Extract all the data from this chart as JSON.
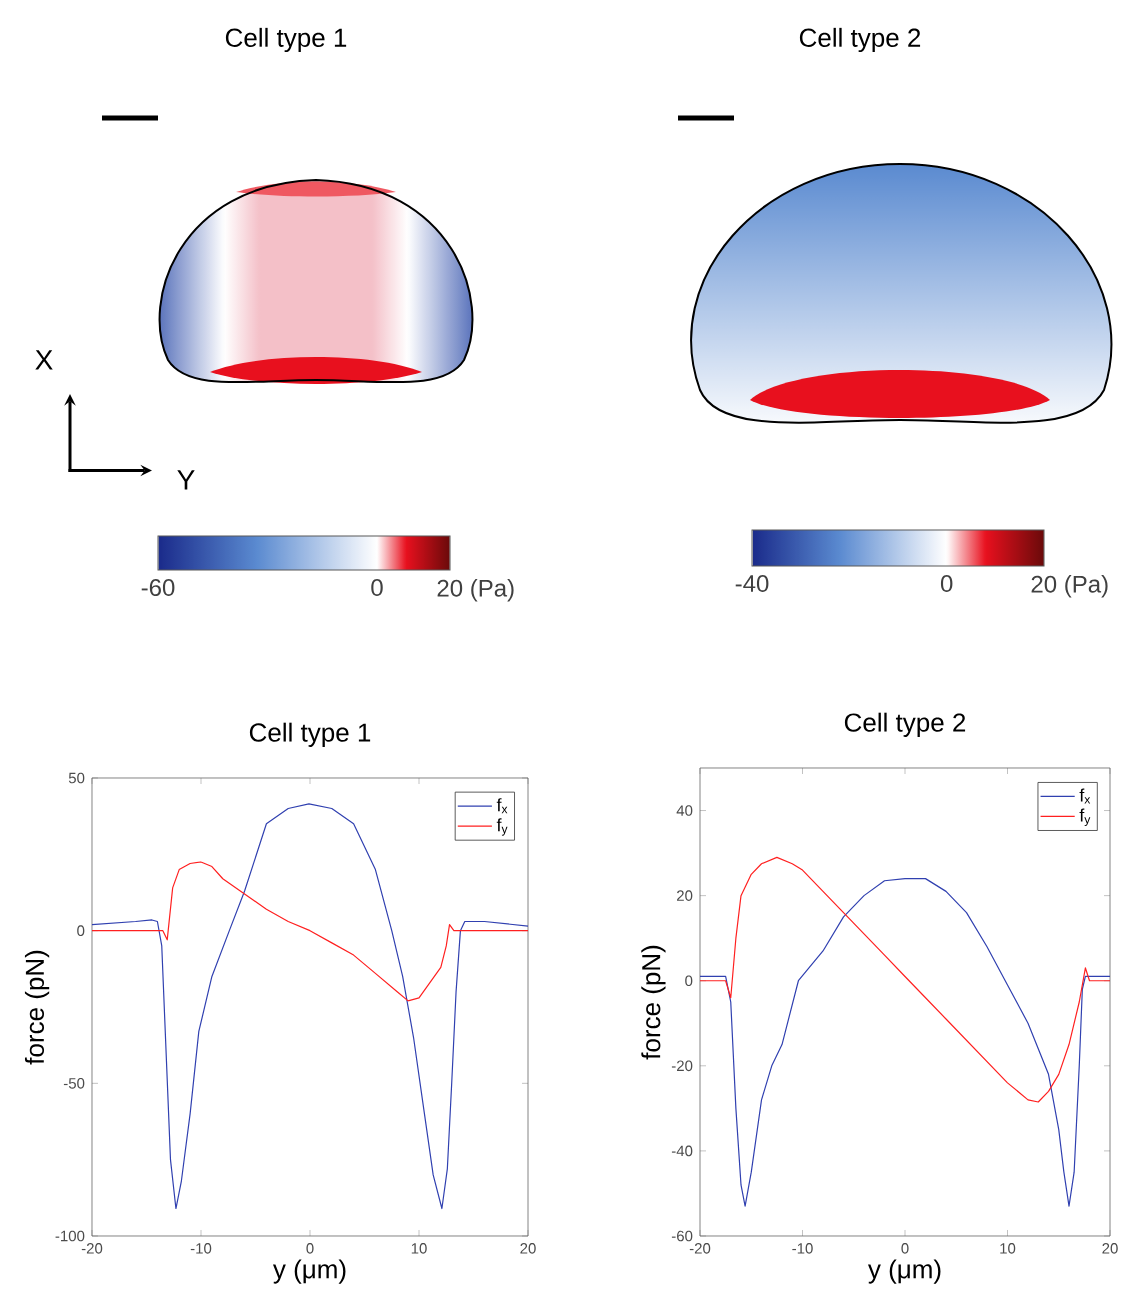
{
  "chart_data": [
    {
      "type": "other",
      "title": "Cell type 1",
      "annotations": [
        "X",
        "Y",
        "-60",
        "0",
        "20 (Pa)"
      ]
    },
    {
      "type": "other",
      "title": "Cell type 2",
      "annotations": [
        "-40",
        "0",
        "20 (Pa)"
      ]
    },
    {
      "type": "line",
      "title": "Cell type 1",
      "xlabel": "y (μm)",
      "ylabel": "force (pN)",
      "xlim": [
        -20,
        20
      ],
      "ylim": [
        -100,
        50
      ],
      "xticks": [
        -20,
        -10,
        0,
        10,
        20
      ],
      "yticks": [
        -100,
        -50,
        0,
        50
      ],
      "legend": "top right",
      "series": [
        {
          "name": "f$_{x}$",
          "color": "#3040b0",
          "x": [
            -20,
            -16,
            -14.5,
            -14,
            -13.6,
            -13.2,
            -12.8,
            -12.3,
            -11.8,
            -11,
            -10.2,
            -9,
            -7.4,
            -6,
            -4,
            -2,
            -0.1,
            2,
            4,
            6,
            7.5,
            8.5,
            9.5,
            10.5,
            11.3,
            12.1,
            12.6,
            13,
            13.4,
            13.8,
            14.2,
            16,
            20
          ],
          "values": [
            2,
            3,
            3.5,
            3,
            -5,
            -40,
            -75,
            -91,
            -82,
            -60,
            -33,
            -15,
            0,
            13,
            35,
            40,
            41.5,
            40,
            35,
            20,
            0,
            -15,
            -35,
            -60,
            -80,
            -91,
            -78,
            -50,
            -20,
            0,
            3,
            3,
            1.5
          ]
        },
        {
          "name": "f$_{y}$",
          "color": "#ff2020",
          "x": [
            -20,
            -13.5,
            -13.1,
            -12.6,
            -12,
            -11,
            -10,
            -9,
            -8,
            -6,
            -4,
            -2,
            0,
            2,
            4,
            6,
            8,
            9,
            10,
            11,
            12,
            12.5,
            12.8,
            13.2,
            14,
            20
          ],
          "values": [
            0,
            0,
            -3,
            14,
            20,
            22,
            22.5,
            21,
            17,
            12,
            7,
            3,
            0,
            -4,
            -8,
            -14,
            -20,
            -23,
            -22,
            -17,
            -12,
            -5,
            2,
            0,
            0,
            0
          ]
        }
      ]
    },
    {
      "type": "line",
      "title": "Cell type 2",
      "xlabel": "y (μm)",
      "ylabel": "force (pN)",
      "xlim": [
        -20,
        20
      ],
      "ylim": [
        -60,
        50
      ],
      "xticks": [
        -20,
        -10,
        0,
        10,
        20
      ],
      "yticks": [
        -60,
        -40,
        -20,
        0,
        20,
        40
      ],
      "legend": "top right",
      "series": [
        {
          "name": "f$_{x}$",
          "color": "#3040b0",
          "x": [
            -20,
            -17.5,
            -17,
            -16.5,
            -16,
            -15.6,
            -15,
            -14,
            -13,
            -12,
            -10.4,
            -8,
            -6,
            -4,
            -2,
            0,
            2,
            4,
            6,
            8,
            10,
            12,
            14,
            15,
            15.5,
            16,
            16.5,
            17,
            17.3,
            17.6,
            20
          ],
          "values": [
            1,
            1,
            -5,
            -30,
            -48,
            -53,
            -45,
            -28,
            -20,
            -15,
            0,
            7,
            15,
            20,
            23.5,
            24,
            24,
            21,
            16,
            8,
            -1,
            -10,
            -22,
            -35,
            -45,
            -53,
            -45,
            -20,
            -2,
            1,
            1
          ]
        },
        {
          "name": "f$_{y}$",
          "color": "#ff2020",
          "x": [
            -20,
            -17.5,
            -17,
            -16.5,
            -16,
            -15,
            -14,
            -12.5,
            -11,
            -10,
            -8,
            -6,
            -4,
            -2,
            0,
            2,
            4,
            6,
            8,
            10,
            12,
            13,
            14,
            15,
            16,
            17,
            17.6,
            18,
            20
          ],
          "values": [
            0,
            0,
            -4,
            10,
            20,
            25,
            27.5,
            29,
            27.5,
            26,
            21,
            16,
            11,
            6,
            1,
            -4,
            -9,
            -14,
            -19,
            -24,
            -28,
            -28.5,
            -26,
            -22,
            -15,
            -5,
            3,
            0,
            0
          ]
        }
      ]
    }
  ]
}
